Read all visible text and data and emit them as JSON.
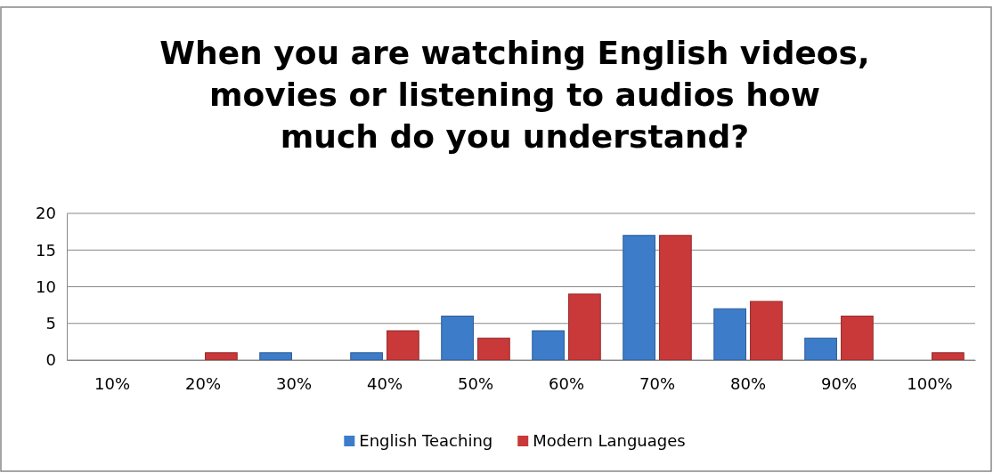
{
  "chart_data": {
    "type": "bar",
    "title": "When you are watching English videos, movies or listening to audios how much do you understand?",
    "categories": [
      "10%",
      "20%",
      "30%",
      "40%",
      "50%",
      "60%",
      "70%",
      "80%",
      "90%",
      "100%"
    ],
    "series": [
      {
        "name": "English Teaching",
        "color": "#3d7cc9",
        "values": [
          0,
          0,
          1,
          1,
          6,
          4,
          17,
          7,
          3,
          0
        ]
      },
      {
        "name": "Modern Languages",
        "color": "#c9393a",
        "values": [
          0,
          1,
          0,
          4,
          3,
          9,
          17,
          8,
          6,
          1
        ]
      }
    ],
    "ylim": [
      0,
      20
    ],
    "yticks": [
      0,
      5,
      10,
      15,
      20
    ],
    "grid": "y",
    "legend": "bottom"
  }
}
